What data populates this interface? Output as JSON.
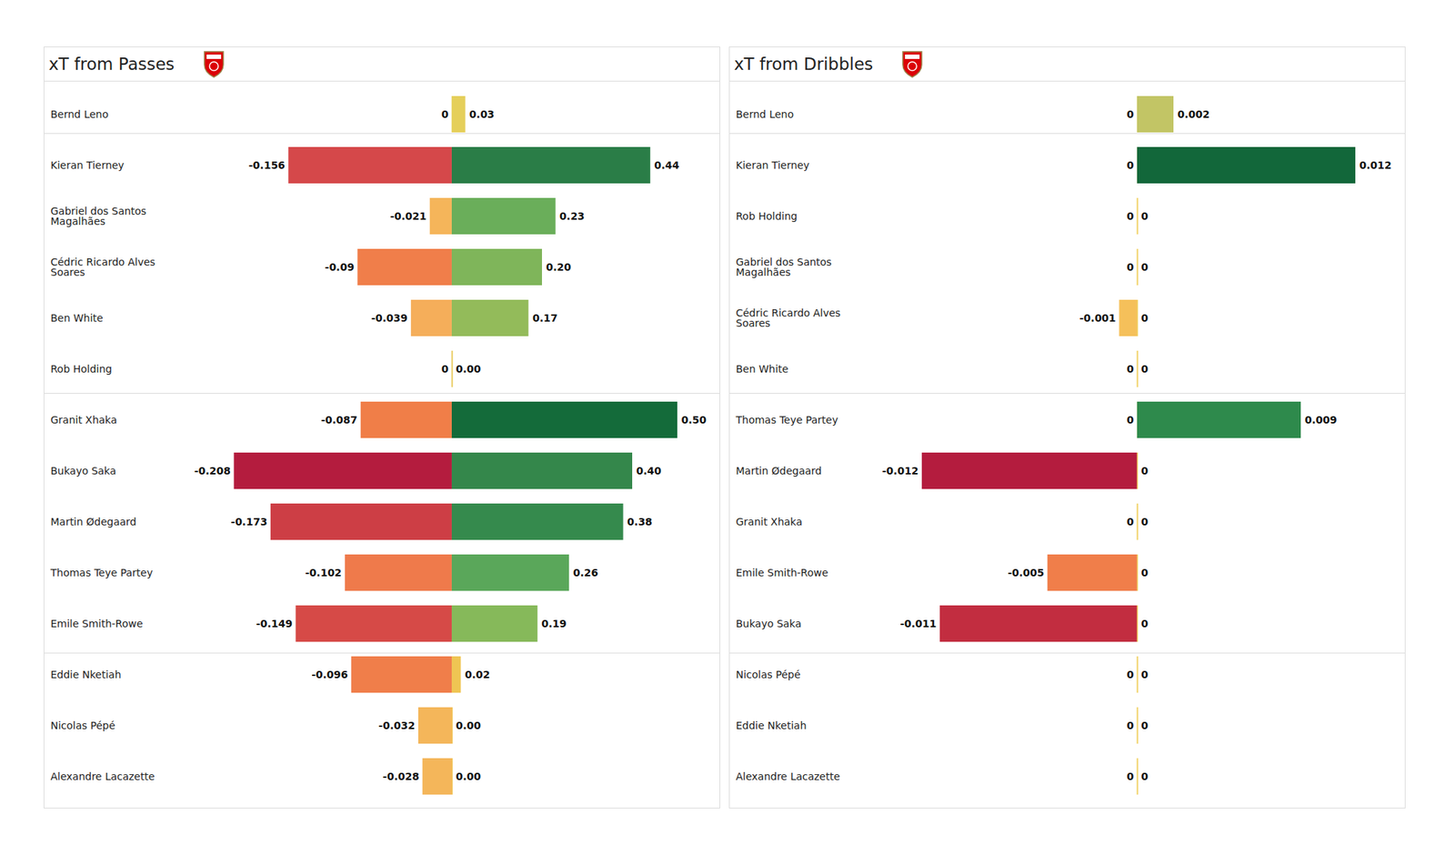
{
  "chart_data": [
    {
      "type": "bar",
      "title": "xT from Passes",
      "orientation": "horizontal",
      "data_labels": true,
      "tick_labels": "y",
      "categories": [
        "Bernd Leno",
        "Kieran Tierney",
        "Gabriel dos Santos Magalhães",
        "Cédric Ricardo Alves Soares",
        "Ben White",
        "Rob Holding",
        "Granit Xhaka",
        "Bukayo Saka",
        "Martin Ødegaard",
        "Thomas Teye Partey",
        "Emile Smith-Rowe",
        "Eddie Nketiah",
        "Nicolas Pépé",
        "Alexandre Lacazette"
      ],
      "values": [
        0,
        -0.156,
        -0.021,
        -0.09,
        -0.039,
        0,
        -0.087,
        -0.208,
        -0.173,
        -0.102,
        -0.149,
        -0.096,
        -0.032,
        -0.028
      ],
      "colors": [
        "#e8c95a",
        "#d5484a",
        "#f5b55a",
        "#f07e4a",
        "#f5ae5a",
        "#e8c95a",
        "#f07e48",
        "#b41c3e",
        "#cd3e45",
        "#ef7a4b",
        "#d64a47",
        "#f07e4a",
        "#f4b65a",
        "#f4b65a"
      ],
      "xlim": [
        -0.25,
        0
      ]
    },
    {
      "type": "bar",
      "orientation": "horizontal",
      "data_labels": true,
      "tick_labels": false,
      "categories": [
        "Bernd Leno",
        "Kieran Tierney",
        "Gabriel dos Santos Magalhães",
        "Cédric Ricardo Alves Soares",
        "Ben White",
        "Rob Holding",
        "Granit Xhaka",
        "Bukayo Saka",
        "Martin Ødegaard",
        "Thomas Teye Partey",
        "Emile Smith-Rowe",
        "Eddie Nketiah",
        "Nicolas Pépé",
        "Alexandre Lacazette"
      ],
      "values": [
        0.03,
        0.44,
        0.23,
        0.2,
        0.17,
        0,
        0.5,
        0.4,
        0.38,
        0.26,
        0.19,
        0.02,
        0,
        0
      ],
      "value_labels": [
        "0.03",
        "0.44",
        "0.23",
        "0.20",
        "0.17",
        "0.00",
        "0.50",
        "0.40",
        "0.38",
        "0.26",
        "0.19",
        "0.02",
        "0.00",
        "0.00"
      ],
      "colors": [
        "#e5cf5b",
        "#2a7d47",
        "#6aae5a",
        "#7fb55a",
        "#93bb5a",
        "#e8c95a",
        "#146b3a",
        "#34874b",
        "#358a4d",
        "#5aa75a",
        "#86b95a",
        "#efc553",
        "#f0c050",
        "#f0c050"
      ],
      "xlim": [
        0,
        0.5
      ]
    },
    {
      "type": "bar",
      "title": "xT from Dribbles",
      "orientation": "horizontal",
      "data_labels": true,
      "tick_labels": "y",
      "categories": [
        "Bernd Leno",
        "Kieran Tierney",
        "Rob Holding",
        "Gabriel dos Santos Magalhães",
        "Cédric Ricardo Alves Soares",
        "Ben White",
        "Thomas Teye Partey",
        "Martin Ødegaard",
        "Granit Xhaka",
        "Emile Smith-Rowe",
        "Bukayo Saka",
        "Nicolas Pépé",
        "Eddie Nketiah",
        "Alexandre Lacazette"
      ],
      "values": [
        0,
        0,
        0,
        0,
        -0.001,
        0,
        0,
        -0.012,
        0,
        -0.005,
        -0.011,
        0,
        0,
        0
      ],
      "colors": [
        "#f0d060",
        "#f0d060",
        "#f0d060",
        "#f0d060",
        "#f5c05a",
        "#f0d060",
        "#f0d060",
        "#b41c3e",
        "#f0d060",
        "#f07e4a",
        "#c22d40",
        "#f0d060",
        "#f0d060",
        "#f0d060"
      ],
      "xlim": [
        -0.0146,
        0
      ]
    },
    {
      "type": "bar",
      "orientation": "horizontal",
      "data_labels": true,
      "tick_labels": false,
      "categories": [
        "Bernd Leno",
        "Kieran Tierney",
        "Rob Holding",
        "Gabriel dos Santos Magalhães",
        "Cédric Ricardo Alves Soares",
        "Ben White",
        "Thomas Teye Partey",
        "Martin Ødegaard",
        "Granit Xhaka",
        "Emile Smith-Rowe",
        "Bukayo Saka",
        "Nicolas Pépé",
        "Eddie Nketiah",
        "Alexandre Lacazette"
      ],
      "values": [
        0.002,
        0.012,
        0,
        0,
        0,
        0,
        0.009,
        0,
        0,
        0,
        0,
        0,
        0,
        0
      ],
      "colors": [
        "#c2c565",
        "#12673a",
        "#f0d060",
        "#f0d060",
        "#f0d060",
        "#f0d060",
        "#2e8a4c",
        "#f0d060",
        "#f0d060",
        "#f0d060",
        "#f0d060",
        "#f0d060",
        "#f0d060",
        "#f0d060"
      ],
      "xlim": [
        0,
        0.0124
      ]
    }
  ]
}
